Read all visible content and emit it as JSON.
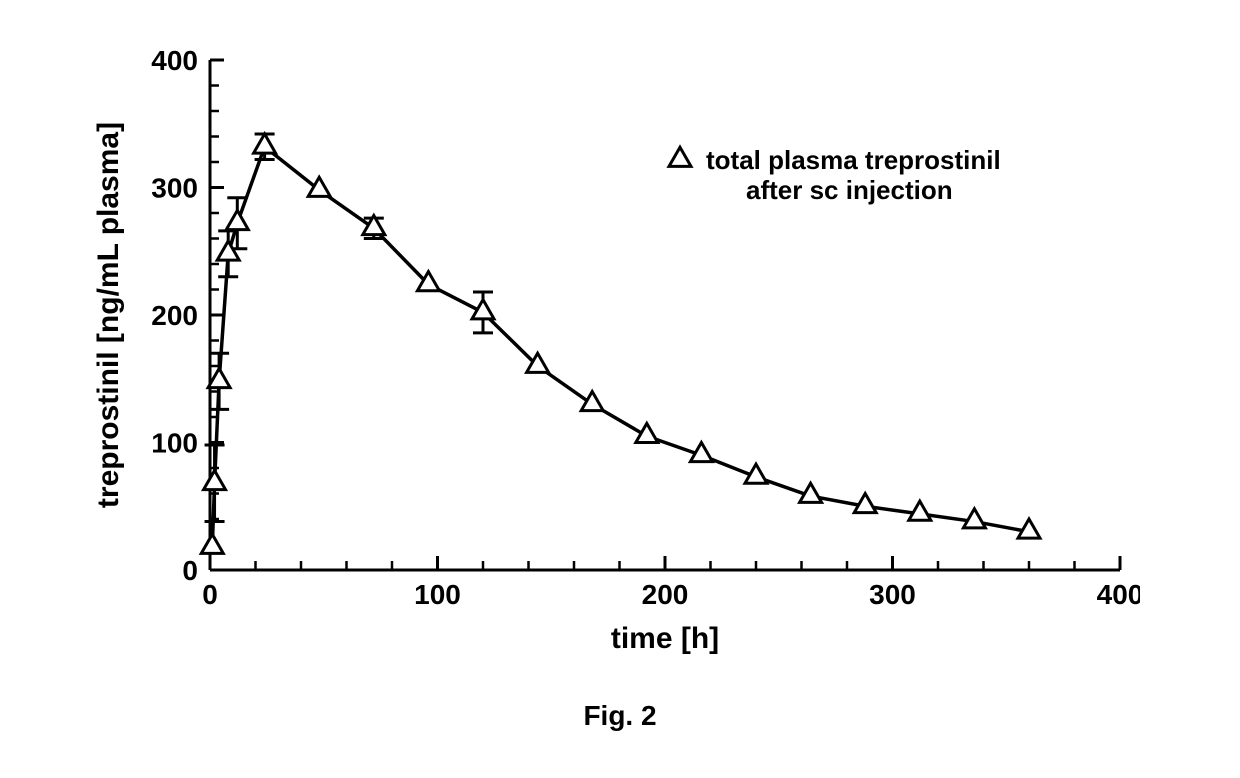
{
  "chart": {
    "type": "line",
    "background_color": "#ffffff",
    "axis_color": "#000000",
    "axis_linewidth": 3,
    "tick_len_major": 14,
    "tick_len_minor": 9,
    "tick_linewidth": 3,
    "tick_linewidth_minor": 2.5,
    "line_color": "#000000",
    "line_width": 3.5,
    "marker": {
      "shape": "triangle-open",
      "size": 22,
      "stroke": "#000000",
      "stroke_width": 3,
      "fill": "#ffffff"
    },
    "xlabel": "time [h]",
    "ylabel": "treprostinil [ng/mL plasma]",
    "label_fontsize": 30,
    "label_fontweight": "bold",
    "tick_fontsize": 28,
    "tick_fontweight": "bold",
    "xlim": [
      0,
      400
    ],
    "ylim": [
      0,
      400
    ],
    "x_major_ticks": [
      0,
      100,
      200,
      300,
      400
    ],
    "x_minor_ticks": [
      20,
      40,
      60,
      80,
      120,
      140,
      160,
      180,
      220,
      240,
      260,
      280,
      320,
      340,
      360,
      380
    ],
    "y_major_ticks": [
      0,
      100,
      200,
      300,
      400
    ],
    "y_minor_ticks": [
      20,
      40,
      60,
      80,
      120,
      140,
      160,
      180,
      220,
      240,
      260,
      280,
      320,
      340,
      360,
      380
    ],
    "series": {
      "name": "total plasma treprostinil after sc injection",
      "x": [
        1,
        2,
        4,
        8,
        12,
        24,
        48,
        72,
        96,
        120,
        144,
        168,
        192,
        216,
        240,
        264,
        288,
        312,
        336,
        360
      ],
      "y": [
        18,
        68,
        148,
        248,
        272,
        332,
        298,
        268,
        224,
        202,
        160,
        130,
        105,
        90,
        73,
        58,
        50,
        44,
        38,
        30
      ],
      "err": [
        0,
        30,
        22,
        18,
        20,
        10,
        0,
        8,
        0,
        16,
        0,
        0,
        0,
        0,
        0,
        0,
        0,
        0,
        0,
        0
      ]
    },
    "error_bar": {
      "color": "#000000",
      "width": 3,
      "cap": 10
    },
    "legend": {
      "line1": "total plasma treprostinil",
      "line2": "after sc injection",
      "fontsize": 26,
      "fontweight": "bold",
      "marker_size": 22
    },
    "caption": "Fig. 2",
    "caption_fontsize": 28,
    "caption_fontweight": "bold"
  }
}
